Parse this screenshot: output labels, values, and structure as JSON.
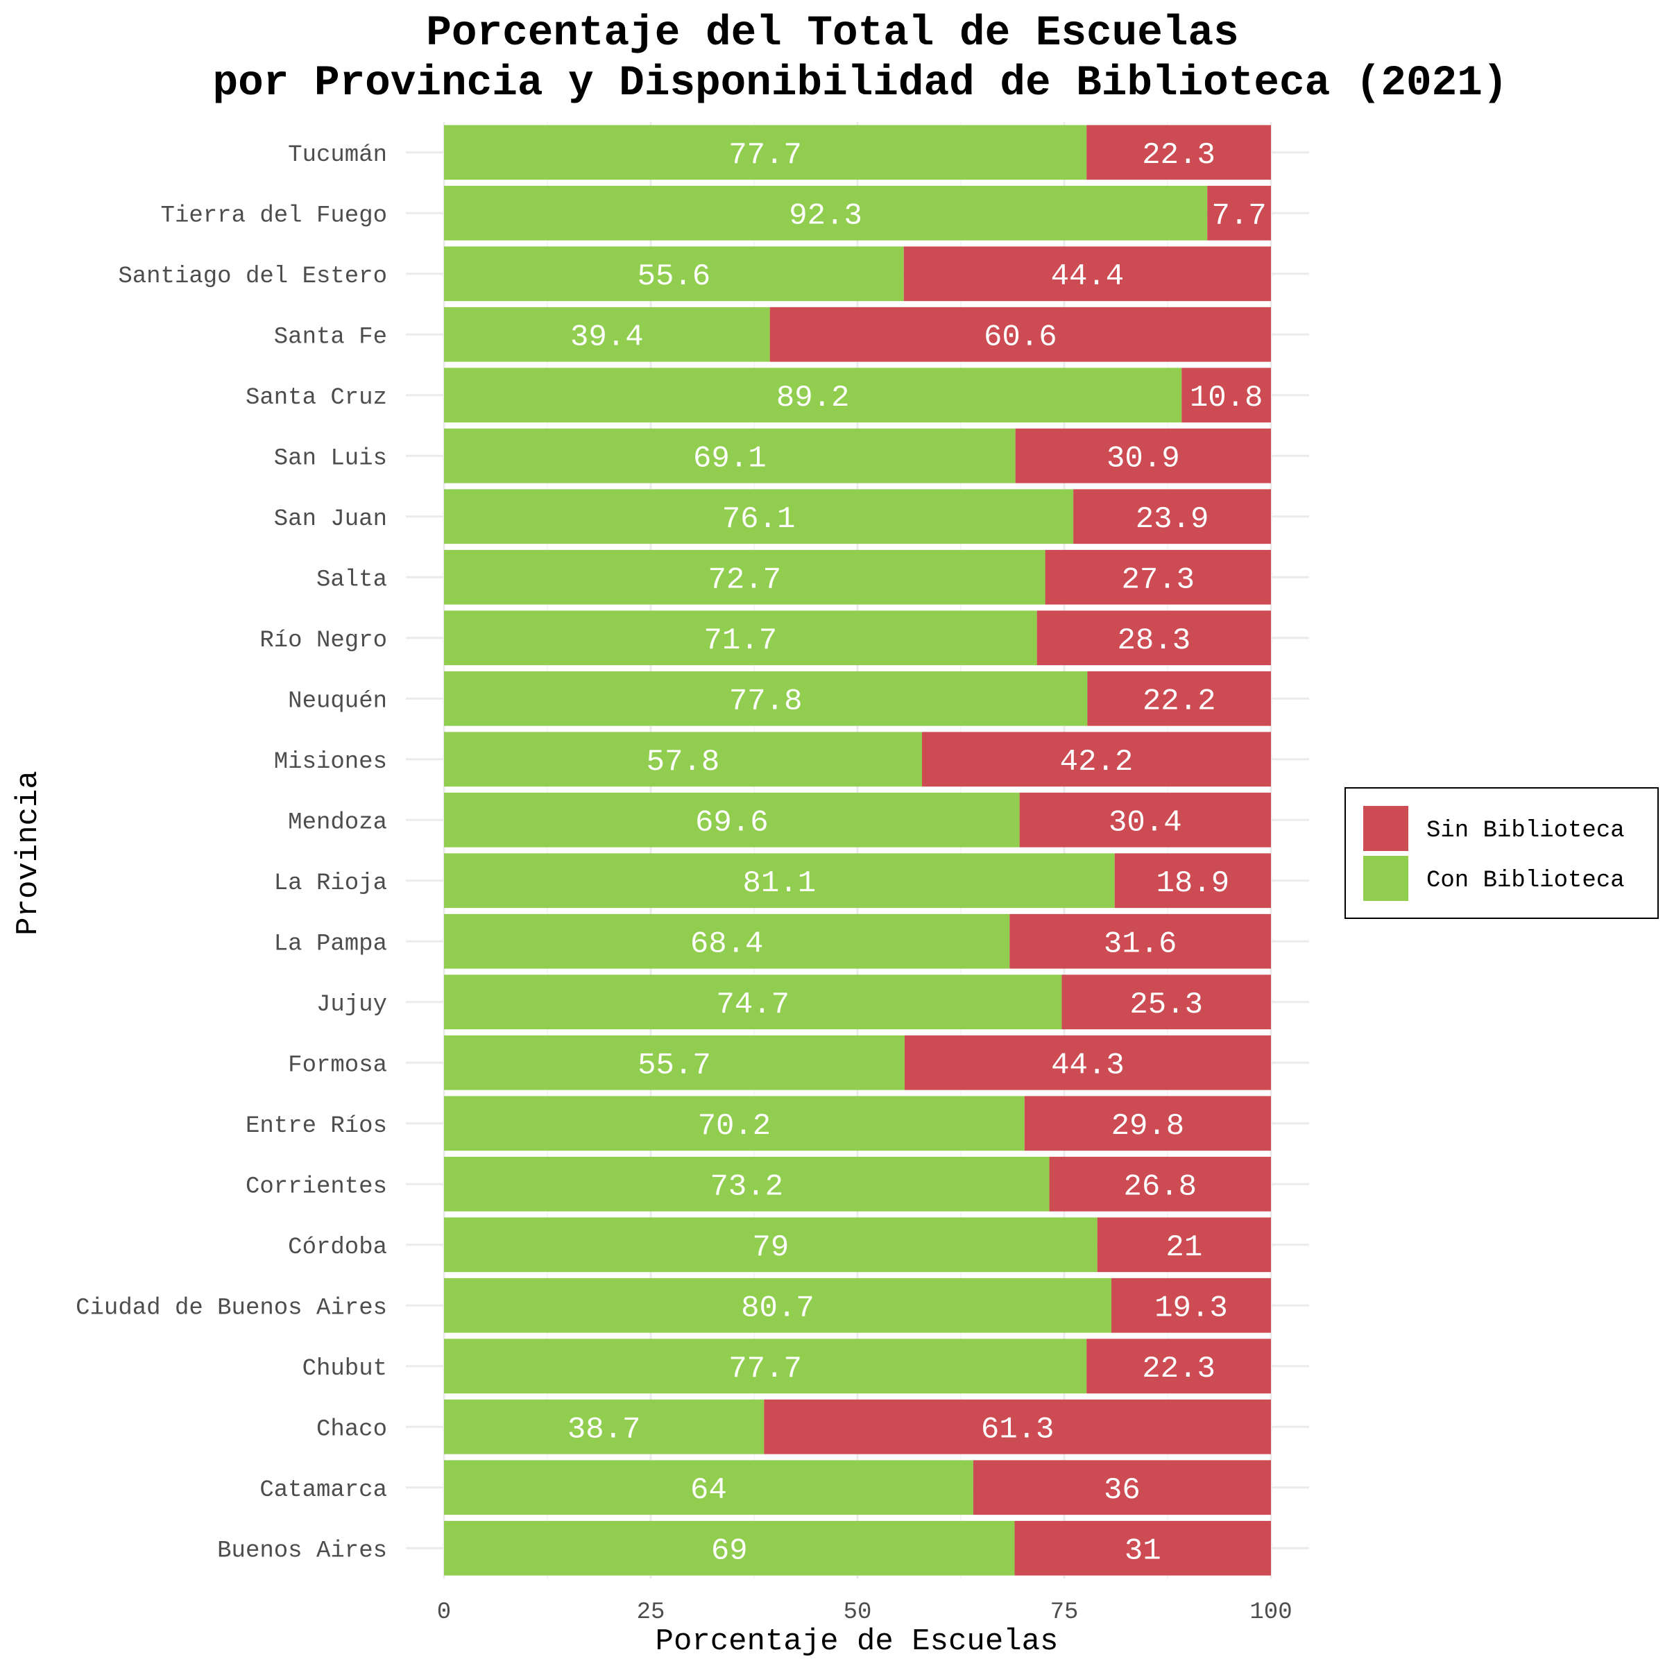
{
  "chart_data": {
    "type": "bar",
    "orientation": "horizontal",
    "stacked": true,
    "title_lines": [
      "Porcentaje del Total de Escuelas",
      "por Provincia y Disponibilidad de Biblioteca (2021)"
    ],
    "xlabel": "Porcentaje de Escuelas",
    "ylabel": "Provincia",
    "xlim": [
      0,
      100
    ],
    "xticks": [
      "0",
      "25",
      "50",
      "75",
      "100"
    ],
    "grid": true,
    "legend_position": "right",
    "categories": [
      "Buenos Aires",
      "Catamarca",
      "Chaco",
      "Chubut",
      "Ciudad de Buenos Aires",
      "Córdoba",
      "Corrientes",
      "Entre Ríos",
      "Formosa",
      "Jujuy",
      "La Pampa",
      "La Rioja",
      "Mendoza",
      "Misiones",
      "Neuquén",
      "Río Negro",
      "Salta",
      "San Juan",
      "San Luis",
      "Santa Cruz",
      "Santa Fe",
      "Santiago del Estero",
      "Tierra del Fuego",
      "Tucumán"
    ],
    "series": [
      {
        "name": "Con Biblioteca",
        "color": "#91CE4F",
        "values": [
          69,
          64,
          38.7,
          77.7,
          80.7,
          79,
          73.2,
          70.2,
          55.7,
          74.7,
          68.4,
          81.1,
          69.6,
          57.8,
          77.8,
          71.7,
          72.7,
          76.1,
          69.1,
          89.2,
          39.4,
          55.6,
          92.3,
          77.7
        ]
      },
      {
        "name": "Sin Biblioteca",
        "color": "#CD4B52",
        "values": [
          31,
          36,
          61.3,
          22.3,
          19.3,
          21,
          26.8,
          29.8,
          44.3,
          25.3,
          31.6,
          18.9,
          30.4,
          42.2,
          22.2,
          28.3,
          27.3,
          23.9,
          30.9,
          10.8,
          60.6,
          44.4,
          7.7,
          22.3
        ]
      }
    ],
    "legend": [
      {
        "name": "Sin Biblioteca",
        "color": "#CD4B52"
      },
      {
        "name": "Con Biblioteca",
        "color": "#91CE4F"
      }
    ]
  }
}
